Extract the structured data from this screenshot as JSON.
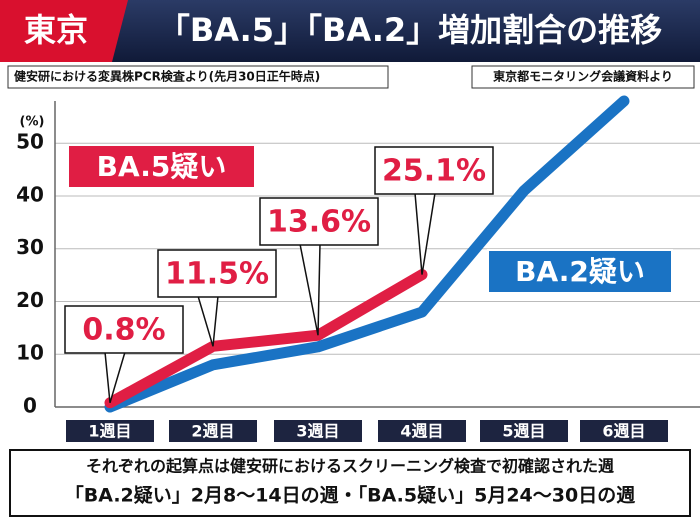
{
  "chart_data": {
    "type": "line",
    "tag": "東京",
    "title": "「BA.5」「BA.2」増加割合の推移",
    "subtitle": "健安研における変異株PCR検査より(先月30日正午時点)",
    "source": "東京都モニタリング会議資料より",
    "y_unit": "(%)",
    "categories": [
      "1週目",
      "2週目",
      "3週目",
      "4週目",
      "5週目",
      "6週目"
    ],
    "series": [
      {
        "name": "BA.2疑い",
        "color": "#1a73c4",
        "values": [
          0,
          8,
          11.4,
          18,
          41,
          58
        ]
      },
      {
        "name": "BA.5疑い",
        "color": "#e01e44",
        "values": [
          0.8,
          11.5,
          13.6,
          25.1,
          null,
          null
        ],
        "value_labels": [
          "0.8%",
          "11.5%",
          "13.6%",
          "25.1%",
          null,
          null
        ]
      }
    ],
    "ylim": [
      0,
      58
    ],
    "yticks": [
      0,
      10,
      20,
      30,
      40,
      50
    ],
    "grid": true,
    "notes": [
      "それぞれの起算点は健安研におけるスクリーニング検査で初確認された週",
      "「BA.2疑い」2月8〜14日の週・「BA.5疑い」5月24〜30日の週"
    ]
  }
}
